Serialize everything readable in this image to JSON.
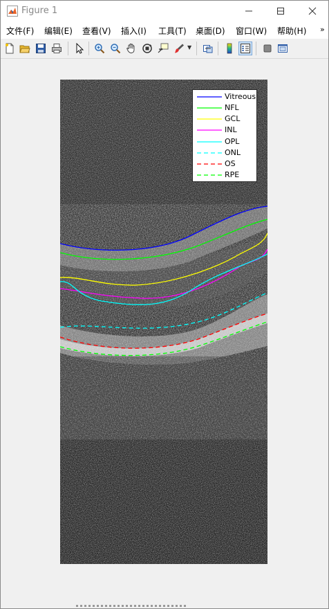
{
  "window": {
    "title": "Figure 1"
  },
  "menu": [
    "文件(F)",
    "编辑(E)",
    "查看(V)",
    "插入(I)",
    "工具(T)",
    "桌面(D)",
    "窗口(W)",
    "帮助(H)"
  ],
  "menu_more": "»",
  "legend": [
    {
      "name": "Vitreous",
      "color": "#0000ff",
      "style": "solid"
    },
    {
      "name": "NFL",
      "color": "#00ff00",
      "style": "solid"
    },
    {
      "name": "GCL",
      "color": "#ffff00",
      "style": "solid"
    },
    {
      "name": "INL",
      "color": "#ff00ff",
      "style": "solid"
    },
    {
      "name": "OPL",
      "color": "#00ffff",
      "style": "solid"
    },
    {
      "name": "ONL",
      "color": "#00ffff",
      "style": "dashed"
    },
    {
      "name": "OS",
      "color": "#ff0000",
      "style": "dashed"
    },
    {
      "name": "RPE",
      "color": "#00ff00",
      "style": "dashed"
    }
  ]
}
